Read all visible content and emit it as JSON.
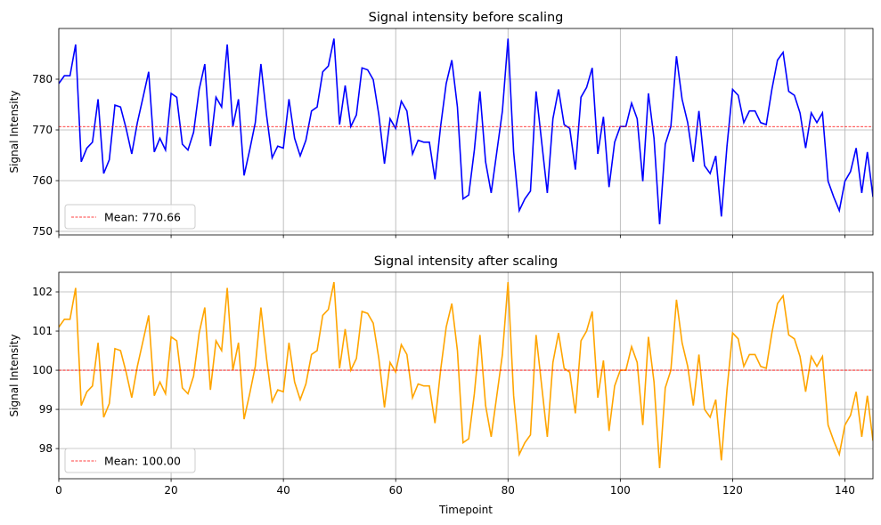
{
  "chart_data": [
    {
      "type": "line",
      "title": "Signal intensity before scaling",
      "xlabel": "",
      "ylabel": "Signal Intensity",
      "xlim": [
        0,
        145
      ],
      "ylim": [
        749.3,
        790
      ],
      "yticks": [
        750,
        760,
        770,
        780
      ],
      "xticks": [
        0,
        20,
        40,
        60,
        80,
        100,
        120,
        140
      ],
      "show_xtick_labels": false,
      "grid": true,
      "color": "#0000ff",
      "mean": 770.66,
      "mean_color": "#ff0000",
      "legend": {
        "label": "Mean: 770.66",
        "placement": "lower-left"
      },
      "derived_from": "after_scaling_times_mean_over_100"
    },
    {
      "type": "line",
      "title": "Signal intensity after scaling",
      "xlabel": "Timepoint",
      "ylabel": "Signal Intensity",
      "xlim": [
        0,
        145
      ],
      "ylim": [
        97.23,
        102.5
      ],
      "yticks": [
        98,
        99,
        100,
        101,
        102
      ],
      "xticks": [
        0,
        20,
        40,
        60,
        80,
        100,
        120,
        140
      ],
      "show_xtick_labels": true,
      "grid": true,
      "color": "#ffa500",
      "mean": 100.0,
      "mean_color": "#ff0000",
      "legend": {
        "label": "Mean: 100.00",
        "placement": "lower-left"
      },
      "values": [
        101.1,
        101.3,
        101.3,
        102.1,
        99.1,
        99.45,
        99.6,
        100.7,
        98.8,
        99.15,
        100.55,
        100.5,
        99.95,
        99.3,
        100.1,
        100.75,
        101.4,
        99.35,
        99.7,
        99.4,
        100.85,
        100.75,
        99.55,
        99.4,
        99.85,
        100.95,
        101.6,
        99.5,
        100.75,
        100.5,
        102.1,
        100.0,
        100.7,
        98.75,
        99.4,
        100.1,
        101.6,
        100.3,
        99.2,
        99.5,
        99.45,
        100.7,
        99.7,
        99.25,
        99.65,
        100.4,
        100.5,
        101.4,
        101.55,
        102.25,
        100.05,
        101.05,
        100.0,
        100.3,
        101.5,
        101.45,
        101.2,
        100.3,
        99.05,
        100.2,
        99.95,
        100.65,
        100.4,
        99.3,
        99.65,
        99.6,
        99.6,
        98.65,
        100.0,
        101.1,
        101.7,
        100.5,
        98.15,
        98.25,
        99.4,
        100.9,
        99.1,
        98.3,
        99.35,
        100.4,
        102.25,
        99.35,
        97.85,
        98.15,
        98.35,
        100.9,
        99.6,
        98.3,
        100.2,
        100.95,
        100.05,
        99.95,
        98.9,
        100.75,
        101.0,
        101.5,
        99.3,
        100.25,
        98.45,
        99.6,
        100.0,
        100.0,
        100.6,
        100.2,
        98.6,
        100.85,
        99.7,
        97.5,
        99.55,
        100.0,
        101.8,
        100.7,
        100.1,
        99.1,
        100.4,
        99.0,
        98.8,
        99.25,
        97.7,
        99.5,
        100.95,
        100.8,
        100.1,
        100.4,
        100.4,
        100.1,
        100.05,
        100.95,
        101.7,
        101.9,
        100.9,
        100.8,
        100.35,
        99.45,
        100.35,
        100.1,
        100.35,
        98.6,
        98.2,
        97.85,
        98.6,
        98.85,
        99.45,
        98.3,
        99.35,
        98.2
      ]
    }
  ]
}
